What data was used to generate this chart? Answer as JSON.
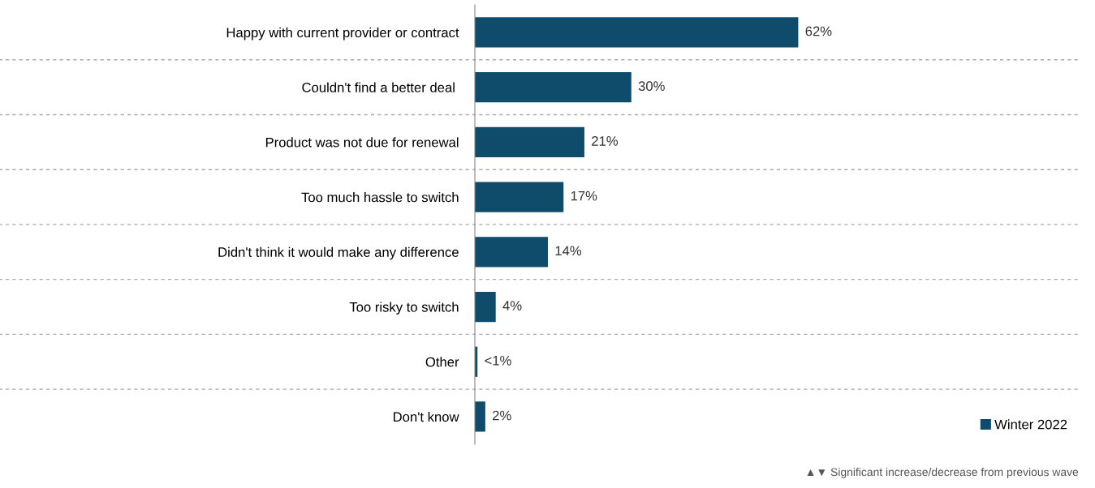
{
  "chart_data": {
    "type": "bar",
    "orientation": "horizontal",
    "categories": [
      "Happy with current provider or contract",
      "Couldn't find a better deal ",
      "Product was not due for renewal",
      "Too much hassle to switch",
      "Didn't think it would make any difference",
      "Too risky to switch",
      "Other",
      "Don't know"
    ],
    "series": [
      {
        "name": "Winter 2022",
        "color": "#0f4c6b",
        "values": [
          62,
          30,
          21,
          17,
          14,
          4,
          0.5,
          2
        ],
        "value_labels": [
          "62%",
          "30%",
          "21%",
          "17%",
          "14%",
          "4%",
          "<1%",
          "2%"
        ]
      }
    ],
    "legend": "bottom right",
    "tick_labels": "y",
    "annotations": [
      "▲▼ Significant increase/decrease from previous wave"
    ]
  }
}
